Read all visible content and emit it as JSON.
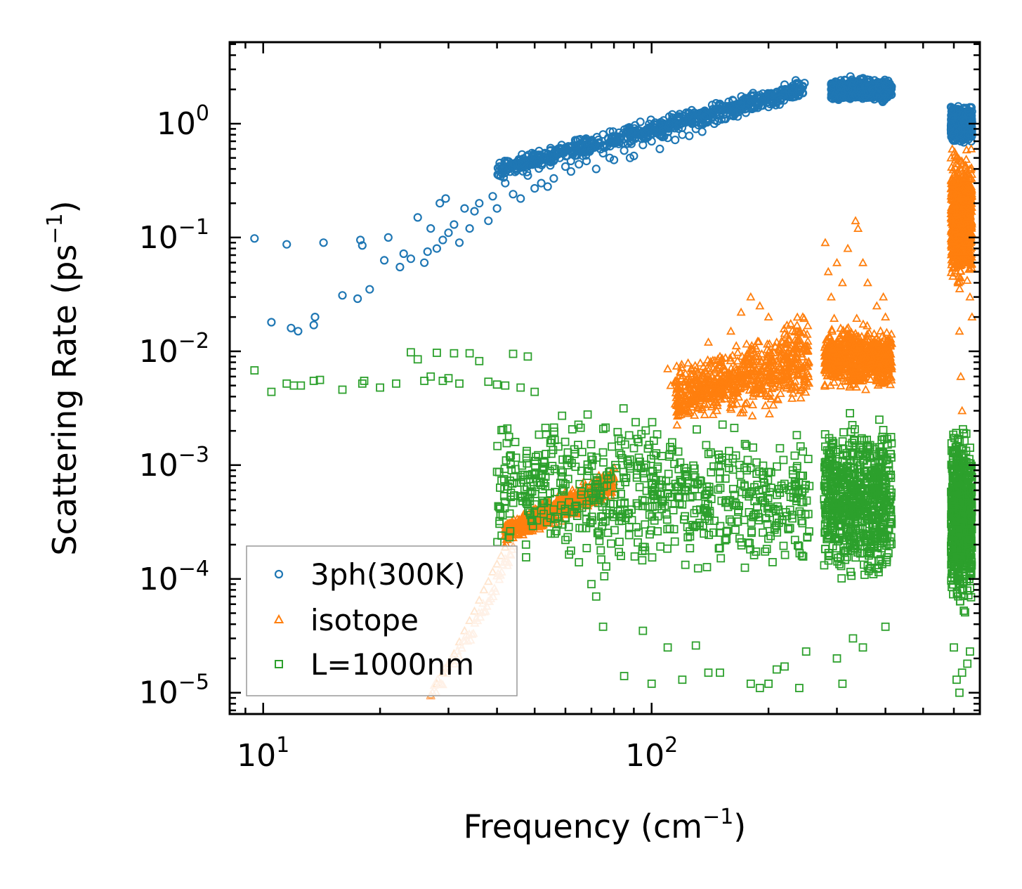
{
  "chart_data": {
    "type": "scatter",
    "title": "",
    "xlabel": "Frequency (cm",
    "xlabel_sup": "−1",
    "xlabel_close": ")",
    "ylabel": "Scattering Rate (ps",
    "ylabel_sup": "−1",
    "ylabel_close": ")",
    "xscale": "log",
    "yscale": "log",
    "xlim": [
      8.2,
      700
    ],
    "ylim": [
      6.5e-06,
      5.2
    ],
    "grid": false,
    "legend_position": "lower-left",
    "x_ticks": [
      {
        "value": 10,
        "base": "10",
        "exp": "1"
      },
      {
        "value": 100,
        "base": "10",
        "exp": "2"
      }
    ],
    "y_ticks": [
      {
        "value": 1,
        "base": "10",
        "exp": "0"
      },
      {
        "value": 0.1,
        "base": "10",
        "exp": "−1"
      },
      {
        "value": 0.01,
        "base": "10",
        "exp": "−2"
      },
      {
        "value": 0.001,
        "base": "10",
        "exp": "−3"
      },
      {
        "value": 0.0001,
        "base": "10",
        "exp": "−4"
      },
      {
        "value": 1e-05,
        "base": "10",
        "exp": "−5"
      }
    ],
    "series": [
      {
        "name": "3ph(300K)",
        "marker": "circle",
        "color": "#1f77b4",
        "points": [
          [
            9.5,
            0.098
          ],
          [
            10.5,
            0.018
          ],
          [
            11.5,
            0.087
          ],
          [
            11.8,
            0.016
          ],
          [
            12.3,
            0.015
          ],
          [
            13.5,
            0.017
          ],
          [
            13.6,
            0.02
          ],
          [
            14.3,
            0.09
          ],
          [
            16,
            0.031
          ],
          [
            17.5,
            0.029
          ],
          [
            17.8,
            0.095
          ],
          [
            18,
            0.085
          ],
          [
            18.8,
            0.035
          ],
          [
            20.5,
            0.063
          ],
          [
            21,
            0.1
          ],
          [
            22.5,
            0.055
          ],
          [
            23,
            0.072
          ],
          [
            24,
            0.065
          ],
          [
            25,
            0.15
          ],
          [
            26,
            0.06
          ],
          [
            26.5,
            0.075
          ],
          [
            27,
            0.12
          ],
          [
            28,
            0.08
          ],
          [
            28.5,
            0.2
          ],
          [
            29,
            0.095
          ],
          [
            29.5,
            0.22
          ],
          [
            30,
            0.11
          ],
          [
            31,
            0.13
          ],
          [
            32,
            0.09
          ],
          [
            33,
            0.18
          ],
          [
            34,
            0.12
          ],
          [
            35,
            0.17
          ],
          [
            36,
            0.2
          ],
          [
            38,
            0.14
          ],
          [
            39,
            0.23
          ],
          [
            40,
            0.18
          ],
          [
            42,
            0.3
          ],
          [
            44,
            0.24
          ],
          [
            46,
            0.22
          ],
          [
            48,
            0.35
          ],
          [
            50,
            0.27
          ],
          [
            52,
            0.3
          ],
          [
            54,
            0.28
          ],
          [
            56,
            0.33
          ],
          [
            58,
            0.5
          ],
          [
            60,
            0.42
          ],
          [
            62,
            0.38
          ],
          [
            65,
            0.44
          ],
          [
            68,
            0.47
          ],
          [
            70,
            0.6
          ],
          [
            72,
            0.4
          ],
          [
            75,
            0.55
          ],
          [
            78,
            0.5
          ],
          [
            80,
            0.48
          ],
          [
            85,
            0.58
          ],
          [
            88,
            0.5
          ],
          [
            90,
            0.52
          ],
          [
            95,
            0.65
          ],
          [
            100,
            0.7
          ],
          [
            105,
            0.6
          ],
          [
            110,
            0.75
          ],
          [
            115,
            0.72
          ],
          [
            120,
            0.8
          ],
          [
            125,
            0.78
          ],
          [
            130,
            0.9
          ],
          [
            135,
            0.85
          ],
          [
            140,
            1.05
          ],
          [
            145,
            1.0
          ],
          [
            150,
            1.2
          ],
          [
            155,
            1.1
          ],
          [
            160,
            1.3
          ],
          [
            165,
            1.25
          ],
          [
            170,
            1.45
          ],
          [
            175,
            1.35
          ],
          [
            180,
            1.6
          ],
          [
            185,
            1.5
          ],
          [
            190,
            1.7
          ],
          [
            195,
            1.6
          ],
          [
            200,
            1.8
          ],
          [
            205,
            1.5
          ],
          [
            210,
            1.9
          ],
          [
            215,
            1.6
          ],
          [
            220,
            2.2
          ],
          [
            225,
            1.8
          ],
          [
            230,
            2.0
          ],
          [
            235,
            2.4
          ],
          [
            240,
            2.0
          ],
          [
            245,
            2.1
          ],
          [
            290,
            2.0
          ],
          [
            295,
            1.7
          ],
          [
            300,
            2.3
          ],
          [
            305,
            2.1
          ],
          [
            310,
            1.9
          ],
          [
            315,
            2.4
          ],
          [
            320,
            2.0
          ],
          [
            325,
            2.6
          ],
          [
            330,
            2.2
          ],
          [
            335,
            1.8
          ],
          [
            340,
            2.3
          ],
          [
            345,
            2.0
          ],
          [
            350,
            2.5
          ],
          [
            355,
            2.1
          ],
          [
            360,
            1.9
          ],
          [
            365,
            2.2
          ],
          [
            370,
            2.0
          ],
          [
            375,
            2.4
          ],
          [
            380,
            1.8
          ],
          [
            385,
            2.1
          ],
          [
            390,
            2.3
          ],
          [
            395,
            1.9
          ],
          [
            400,
            2.2
          ],
          [
            405,
            2.0
          ],
          [
            410,
            2.1
          ],
          [
            590,
            1.4
          ],
          [
            595,
            1.1
          ],
          [
            600,
            0.8
          ],
          [
            605,
            1.0
          ],
          [
            610,
            0.9
          ],
          [
            615,
            1.3
          ],
          [
            620,
            1.2
          ],
          [
            625,
            0.7
          ],
          [
            630,
            1.0
          ],
          [
            635,
            1.1
          ],
          [
            640,
            0.9
          ],
          [
            645,
            1.2
          ],
          [
            650,
            0.8
          ],
          [
            655,
            1.3
          ],
          [
            660,
            1.0
          ],
          [
            665,
            0.7
          ]
        ],
        "bands": [
          {
            "x0": 40,
            "x1": 250,
            "ylow0": 0.3,
            "ylow1": 1.6,
            "yhigh0": 0.5,
            "yhigh1": 2.6
          },
          {
            "x0": 290,
            "x1": 415,
            "ylow0": 1.5,
            "ylow1": 1.5,
            "yhigh0": 2.6,
            "yhigh1": 2.6
          },
          {
            "x0": 590,
            "x1": 668,
            "ylow0": 0.65,
            "ylow1": 0.65,
            "yhigh0": 1.5,
            "yhigh1": 1.5
          }
        ]
      },
      {
        "name": "isotope",
        "marker": "triangle",
        "color": "#ff7f0e",
        "points": [
          [
            27,
            9.5e-06
          ],
          [
            28,
            1.2e-05
          ],
          [
            29,
            1.5e-05
          ],
          [
            30,
            1.8e-05
          ],
          [
            31,
            2.2e-05
          ],
          [
            32,
            2.8e-05
          ],
          [
            33,
            3.5e-05
          ],
          [
            34,
            4.3e-05
          ],
          [
            35,
            5.2e-05
          ],
          [
            36,
            6.5e-05
          ],
          [
            37,
            8e-05
          ],
          [
            38,
            9.5e-05
          ],
          [
            39,
            0.000115
          ],
          [
            40,
            0.000135
          ],
          [
            41,
            0.00016
          ],
          [
            42,
            0.00019
          ],
          [
            44,
            0.00023
          ],
          [
            46,
            0.00028
          ],
          [
            48,
            0.00032
          ],
          [
            50,
            0.00035
          ],
          [
            52,
            0.00039
          ],
          [
            55,
            0.00043
          ],
          [
            58,
            0.00047
          ],
          [
            62,
            0.00052
          ],
          [
            66,
            0.0006
          ],
          [
            70,
            0.0007
          ],
          [
            75,
            0.0008
          ],
          [
            80,
            0.00095
          ],
          [
            110,
            0.007
          ],
          [
            112,
            0.005
          ],
          [
            120,
            0.003
          ],
          [
            130,
            0.006
          ],
          [
            140,
            0.012
          ],
          [
            150,
            0.009
          ],
          [
            160,
            0.015
          ],
          [
            170,
            0.022
          ],
          [
            180,
            0.03
          ],
          [
            190,
            0.025
          ],
          [
            200,
            0.02
          ],
          [
            210,
            0.012
          ],
          [
            220,
            0.009
          ],
          [
            230,
            0.005
          ],
          [
            240,
            0.015
          ],
          [
            245,
            0.02
          ],
          [
            250,
            0.008
          ],
          [
            280,
            0.09
          ],
          [
            285,
            0.05
          ],
          [
            290,
            0.03
          ],
          [
            300,
            0.06
          ],
          [
            310,
            0.04
          ],
          [
            320,
            0.08
          ],
          [
            335,
            0.14
          ],
          [
            340,
            0.12
          ],
          [
            350,
            0.06
          ],
          [
            360,
            0.04
          ],
          [
            380,
            0.025
          ],
          [
            395,
            0.03
          ],
          [
            400,
            0.02
          ],
          [
            410,
            0.012
          ],
          [
            415,
            0.008
          ],
          [
            590,
            0.5
          ],
          [
            595,
            0.3
          ],
          [
            600,
            0.2
          ],
          [
            605,
            0.12
          ],
          [
            610,
            0.06
          ],
          [
            615,
            0.04
          ],
          [
            620,
            0.015
          ],
          [
            625,
            0.006
          ],
          [
            630,
            0.003
          ],
          [
            640,
            0.25
          ],
          [
            650,
            0.1
          ],
          [
            660,
            0.03
          ],
          [
            665,
            0.6
          ],
          [
            668,
            0.02
          ]
        ],
        "bands": [
          {
            "x0": 42,
            "x1": 80,
            "ylow0": 0.00018,
            "ylow1": 0.0005,
            "yhigh0": 0.00035,
            "yhigh1": 0.001
          },
          {
            "x0": 115,
            "x1": 255,
            "ylow0": 0.002,
            "ylow1": 0.003,
            "yhigh0": 0.008,
            "yhigh1": 0.025
          },
          {
            "x0": 278,
            "x1": 415,
            "ylow0": 0.004,
            "ylow1": 0.004,
            "yhigh0": 0.02,
            "yhigh1": 0.02
          },
          {
            "x0": 590,
            "x1": 668,
            "ylow0": 0.03,
            "ylow1": 0.03,
            "yhigh0": 0.7,
            "yhigh1": 0.7
          }
        ]
      },
      {
        "name": "L=1000nm",
        "marker": "square",
        "color": "#2ca02c",
        "points": [
          [
            9.5,
            0.0068
          ],
          [
            10.5,
            0.0044
          ],
          [
            11.5,
            0.0052
          ],
          [
            12,
            0.005
          ],
          [
            12.5,
            0.005
          ],
          [
            13.5,
            0.0055
          ],
          [
            14,
            0.0056
          ],
          [
            16,
            0.0046
          ],
          [
            18,
            0.0052
          ],
          [
            18.2,
            0.0055
          ],
          [
            20,
            0.0048
          ],
          [
            22,
            0.0052
          ],
          [
            24,
            0.0098
          ],
          [
            25,
            0.0085
          ],
          [
            26,
            0.0055
          ],
          [
            27,
            0.006
          ],
          [
            28,
            0.0097
          ],
          [
            29,
            0.0055
          ],
          [
            30,
            0.0058
          ],
          [
            31,
            0.0096
          ],
          [
            32,
            0.0052
          ],
          [
            34,
            0.0096
          ],
          [
            36,
            0.0082
          ],
          [
            38,
            0.0054
          ],
          [
            40,
            0.0051
          ],
          [
            42,
            0.005
          ],
          [
            44,
            0.0095
          ],
          [
            46,
            0.0048
          ],
          [
            48,
            0.009
          ],
          [
            50,
            0.0044
          ],
          [
            45,
            0.0007
          ],
          [
            48,
            0.0005
          ],
          [
            52,
            0.0004
          ],
          [
            55,
            0.00025
          ],
          [
            60,
            0.00022
          ],
          [
            65,
            0.00014
          ],
          [
            70,
            9e-05
          ],
          [
            72,
            7e-05
          ],
          [
            75,
            3.8e-05
          ],
          [
            85,
            1.4e-05
          ],
          [
            95,
            3.5e-05
          ],
          [
            100,
            1.2e-05
          ],
          [
            110,
            2.5e-05
          ],
          [
            120,
            1.3e-05
          ],
          [
            130,
            2.6e-05
          ],
          [
            140,
            1.5e-05
          ],
          [
            150,
            1.5e-05
          ],
          [
            180,
            1.2e-05
          ],
          [
            190,
            1.1e-05
          ],
          [
            200,
            1.2e-05
          ],
          [
            210,
            1.6e-05
          ],
          [
            220,
            1.7e-05
          ],
          [
            240,
            1.1e-05
          ],
          [
            250,
            2.3e-05
          ],
          [
            300,
            2e-05
          ],
          [
            310,
            1.2e-05
          ],
          [
            330,
            3e-05
          ],
          [
            350,
            2.5e-05
          ],
          [
            400,
            3.8e-05
          ],
          [
            600,
            2.5e-05
          ],
          [
            610,
            1.3e-05
          ],
          [
            620,
            1e-05
          ],
          [
            630,
            1.5e-05
          ],
          [
            650,
            1.8e-05
          ],
          [
            660,
            2.3e-05
          ]
        ],
        "bands": [
          {
            "x0": 40,
            "x1": 255,
            "ylow0": 0.0001,
            "ylow1": 8e-05,
            "yhigh0": 0.005,
            "yhigh1": 0.0028
          },
          {
            "x0": 278,
            "x1": 415,
            "ylow0": 7e-05,
            "ylow1": 7e-05,
            "yhigh0": 0.0035,
            "yhigh1": 0.0035
          },
          {
            "x0": 590,
            "x1": 668,
            "ylow0": 4e-05,
            "ylow1": 4e-05,
            "yhigh0": 0.003,
            "yhigh1": 0.003
          }
        ]
      }
    ]
  }
}
